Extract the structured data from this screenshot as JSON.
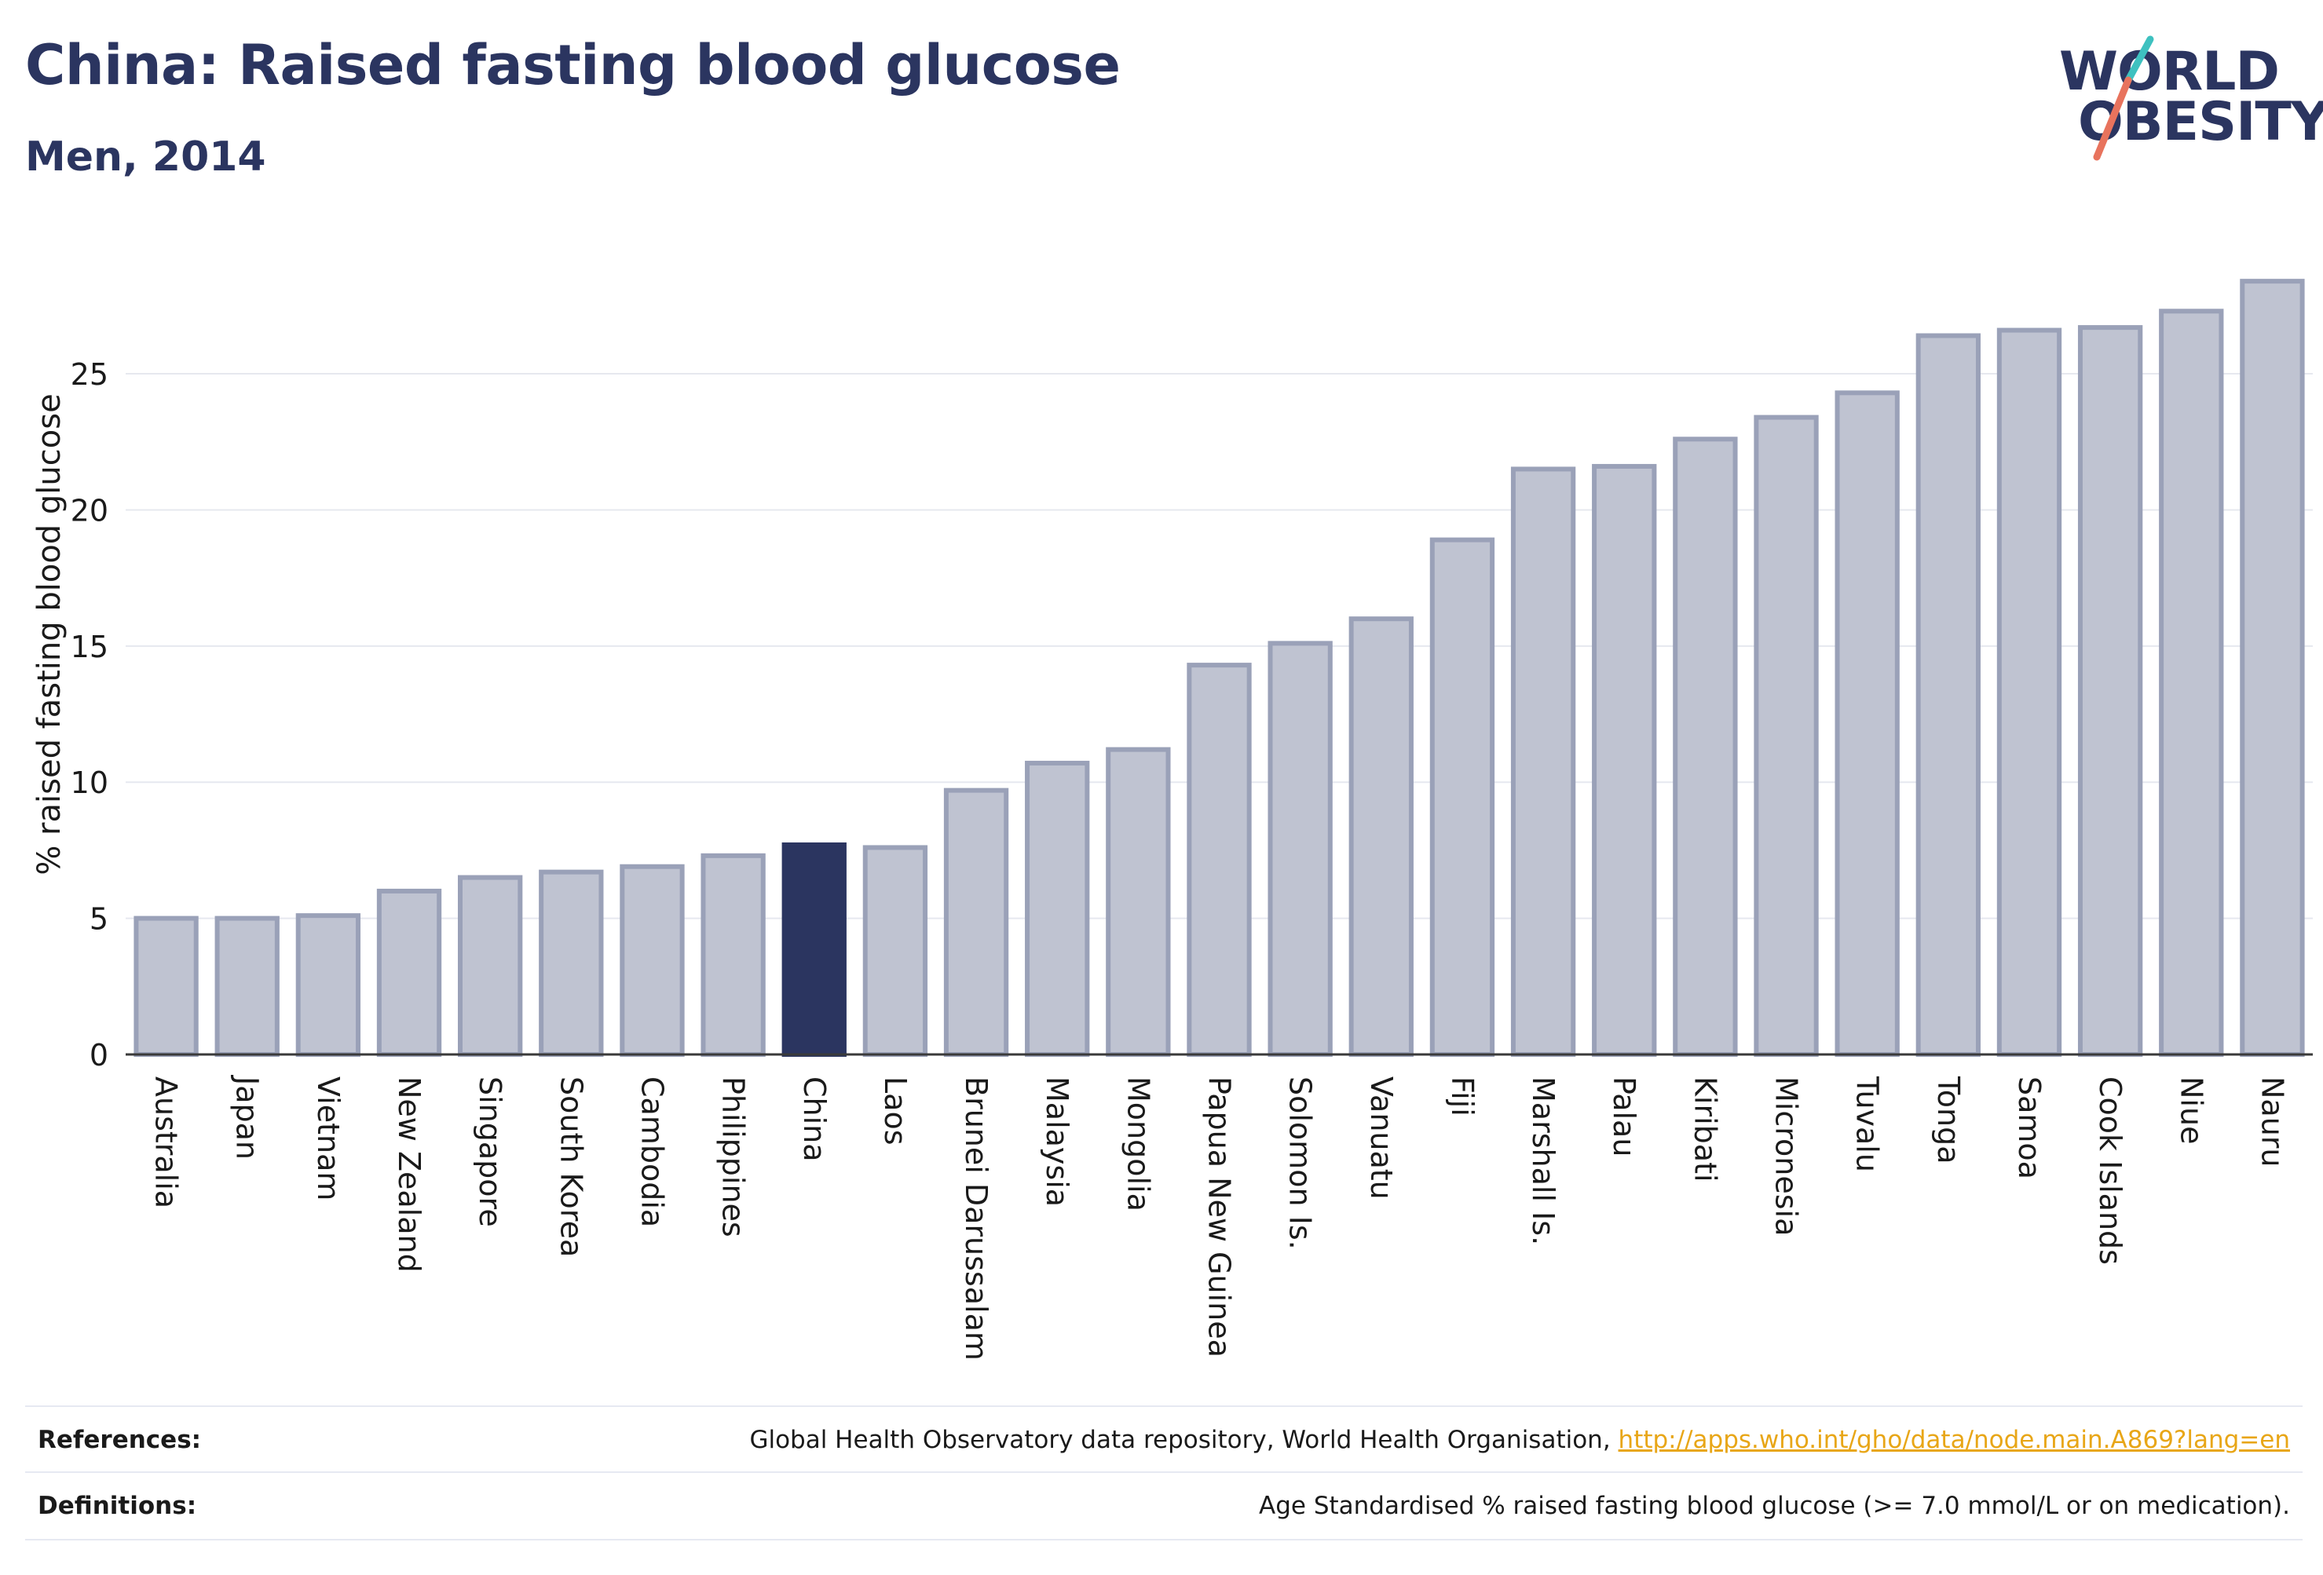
{
  "header": {
    "title": "China: Raised fasting blood glucose",
    "subtitle": "Men, 2014"
  },
  "logo": {
    "line1": "WORLD",
    "line2": "OBESITY",
    "slash_colors": [
      "#3ec1c0",
      "#e8735d"
    ]
  },
  "colors": {
    "bar": "#bfc3d1",
    "bar_stroke": "#9aa1b8",
    "highlight": "#2b3560",
    "grid": "#e6e8ef",
    "axis": "#3a3a3a",
    "link": "#e8a617"
  },
  "chart_data": {
    "type": "bar",
    "categories": [
      "Australia",
      "Japan",
      "Vietnam",
      "New Zealand",
      "Singapore",
      "South Korea",
      "Cambodia",
      "Philippines",
      "China",
      "Laos",
      "Brunei Darussalam",
      "Malaysia",
      "Mongolia",
      "Papua New Guinea",
      "Solomon Is.",
      "Vanuatu",
      "Fiji",
      "Marshall Is.",
      "Palau",
      "Kiribati",
      "Micronesia",
      "Tuvalu",
      "Tonga",
      "Samoa",
      "Cook Islands",
      "Niue",
      "Nauru"
    ],
    "values": [
      5.0,
      5.0,
      5.1,
      6.0,
      6.5,
      6.7,
      6.9,
      7.3,
      7.7,
      7.6,
      9.7,
      10.7,
      11.2,
      14.3,
      15.1,
      16.0,
      18.9,
      21.5,
      21.6,
      22.6,
      23.4,
      24.3,
      26.4,
      26.6,
      26.7,
      27.3,
      28.4
    ],
    "highlight": "China",
    "ylabel": "% raised fasting blood glucose",
    "xlabel": "",
    "ylim": [
      0,
      29.5
    ],
    "yticks": [
      0,
      5,
      10,
      15,
      20,
      25
    ],
    "grid": true,
    "legend": "none"
  },
  "footer": {
    "references_label": "References:",
    "references_text": "Global Health Observatory data repository, World Health Organisation, ",
    "references_link": "http://apps.who.int/gho/data/node.main.A869?lang=en",
    "definitions_label": "Definitions:",
    "definitions_text": "Age Standardised % raised fasting blood glucose (>= 7.0 mmol/L or on medication)."
  }
}
